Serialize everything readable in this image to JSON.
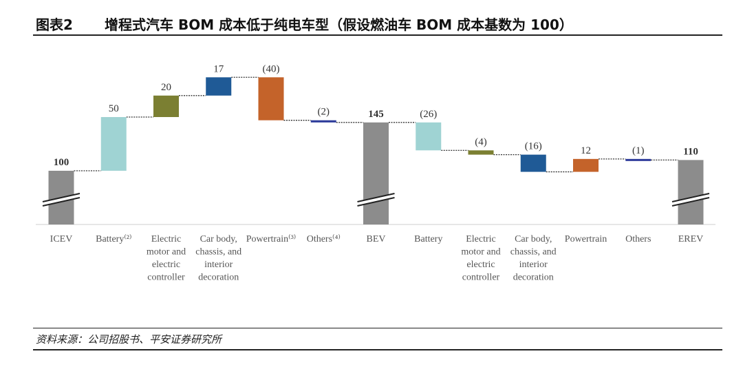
{
  "header": {
    "label": "图表2",
    "title": "增程式汽车 BOM 成本低于纯电车型（假设燃油车 BOM 成本基数为 100）"
  },
  "footer": {
    "source": "资料来源：公司招股书、平安证券研究所"
  },
  "colors": {
    "total": "#8c8c8c",
    "battery": "#9fd3d3",
    "motor": "#7b7f32",
    "body": "#1f5a96",
    "powertrain": "#c4632a",
    "others": "#2c3a9a"
  },
  "chart_data": {
    "type": "bar",
    "subtype": "waterfall",
    "title": "",
    "xlabel": "",
    "ylabel": "",
    "categories": [
      [
        "ICEV"
      ],
      [
        "Battery⁽²⁾"
      ],
      [
        "Electric",
        "motor and",
        "electric",
        "controller"
      ],
      [
        "Car body,",
        "chassis, and",
        "interior",
        "decoration"
      ],
      [
        "Powertrain⁽³⁾"
      ],
      [
        "Others⁽⁴⁾"
      ],
      [
        "BEV"
      ],
      [
        "Battery"
      ],
      [
        "Electric",
        "motor and",
        "electric",
        "controller"
      ],
      [
        "Car body,",
        "chassis, and",
        "interior",
        "decoration"
      ],
      [
        "Powertrain"
      ],
      [
        "Others"
      ],
      [
        "EREV"
      ]
    ],
    "values": [
      100,
      50,
      20,
      17,
      -40,
      -2,
      145,
      -26,
      -4,
      -16,
      12,
      -1,
      110
    ],
    "kinds": [
      "total",
      "delta",
      "delta",
      "delta",
      "delta",
      "delta",
      "total",
      "delta",
      "delta",
      "delta",
      "delta",
      "delta",
      "total"
    ],
    "value_labels": [
      "100",
      "50",
      "20",
      "17",
      "(40)",
      "(2)",
      "145",
      "(26)",
      "(4)",
      "(16)",
      "12",
      "(1)",
      "110"
    ],
    "segment_keys": [
      "total",
      "battery",
      "motor",
      "body",
      "powertrain",
      "others",
      "total",
      "battery",
      "motor",
      "body",
      "powertrain",
      "others",
      "total"
    ],
    "axis_break": true,
    "grid": false,
    "legend": "none"
  }
}
